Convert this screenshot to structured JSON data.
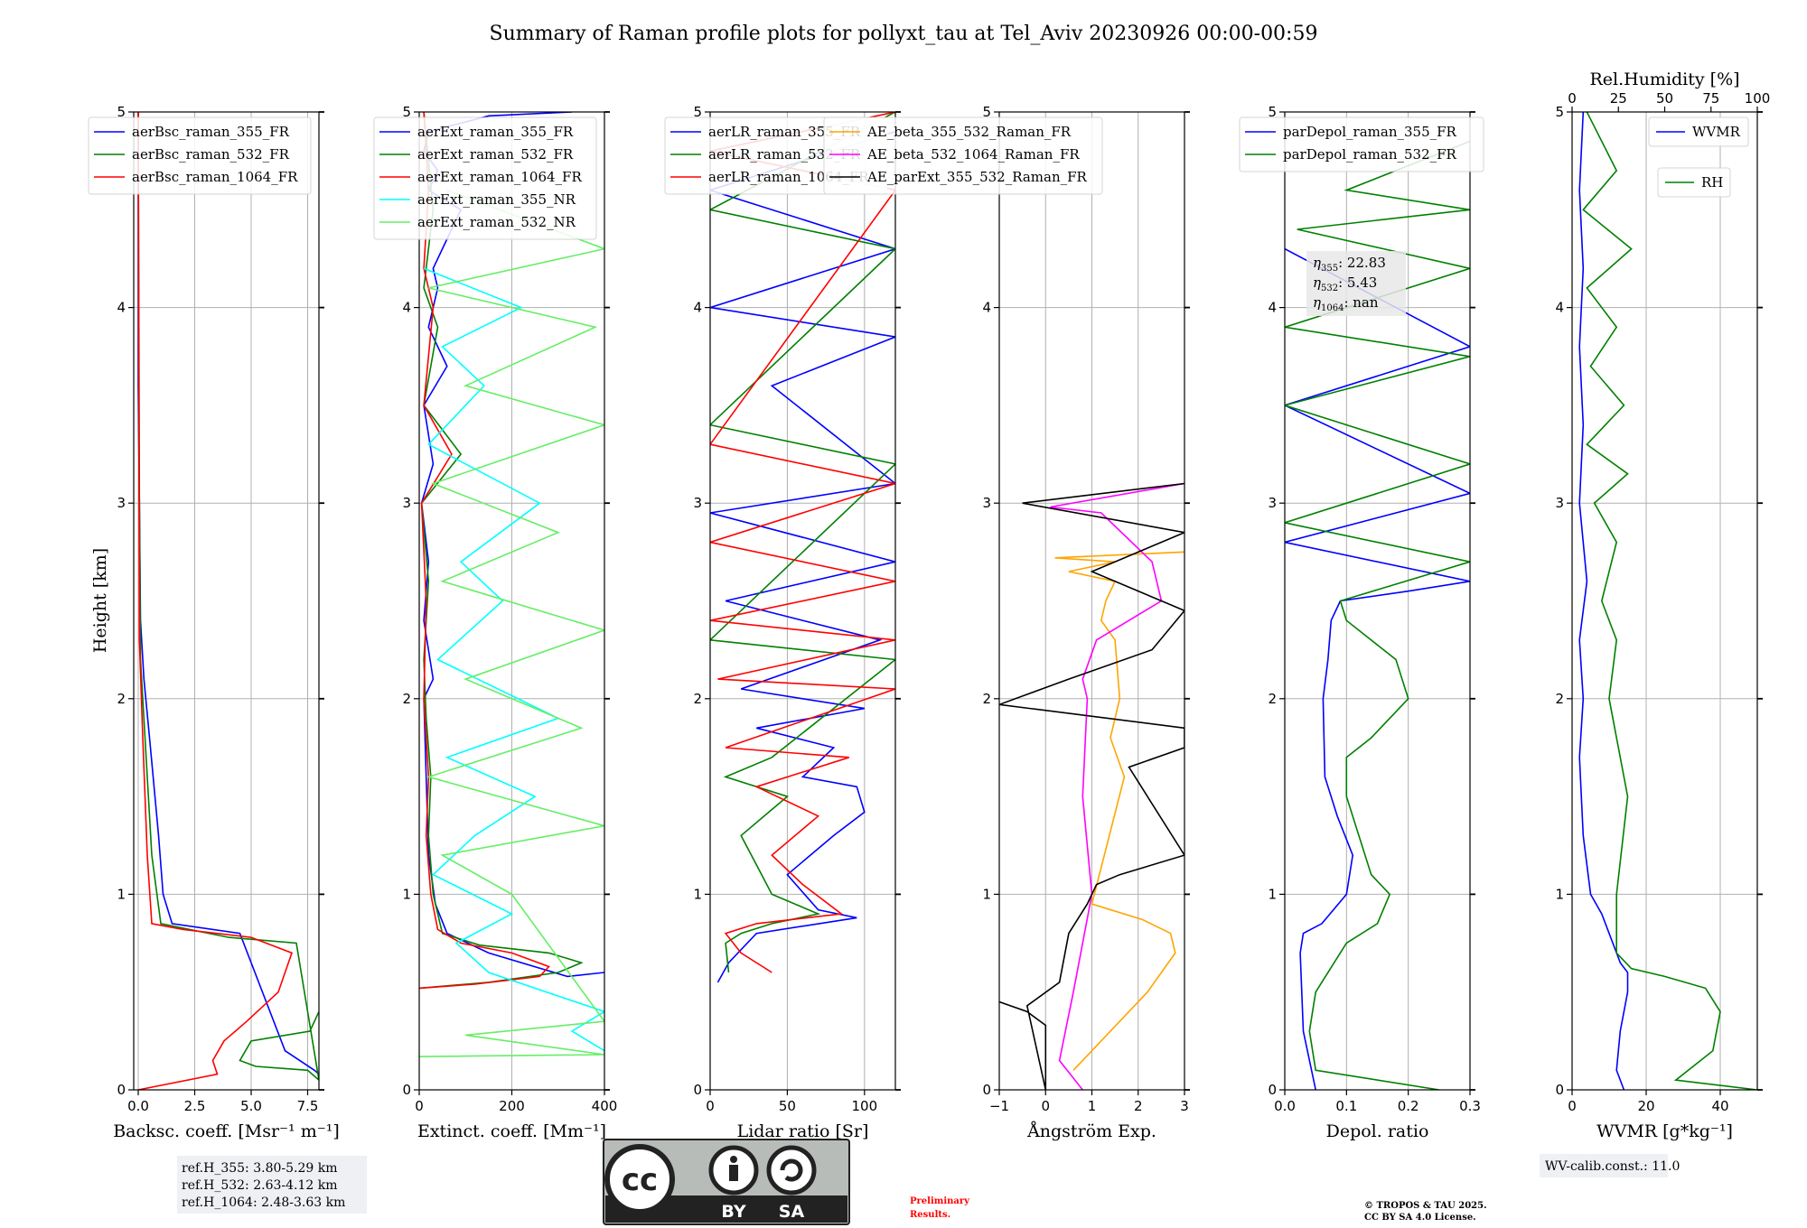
{
  "title": "Summary of Raman profile plots for pollyxt_tau at Tel_Aviv 20230926 00:00-00:59",
  "ylabel": "Height [km]",
  "chart_data": [
    {
      "type": "line",
      "id": "bsc",
      "xlabel": "Backsc. coeff. [Msr⁻¹ m⁻¹]",
      "xlim": [
        -0.2,
        8.0
      ],
      "xticks": [
        0,
        2.5,
        5,
        7.5
      ],
      "xticklabels": [
        "0.0",
        "2.5",
        "5.0",
        "7.5"
      ],
      "ylim": [
        0,
        5
      ],
      "grid": true,
      "legend": "top-left",
      "series": [
        {
          "name": "aerBsc_raman_355_FR",
          "color": "#0000ff",
          "x": [
            8.0,
            7.8,
            6.5,
            4.5,
            1.5,
            1.1,
            0.9,
            0.5,
            0.25,
            0.1,
            0.05,
            0.0,
            0.0,
            0.0
          ],
          "y": [
            0.08,
            0.1,
            0.2,
            0.8,
            0.85,
            1.0,
            1.3,
            1.8,
            2.1,
            2.4,
            3.0,
            3.6,
            4.4,
            5.0
          ]
        },
        {
          "name": "aerBsc_raman_532_FR",
          "color": "#008000",
          "x": [
            8.0,
            7.6,
            5.0,
            4.5,
            5.2,
            7.5,
            8.0,
            7.0,
            4.0,
            1.0,
            0.6,
            0.3,
            0.1,
            0.05,
            0.0
          ],
          "y": [
            0.4,
            0.3,
            0.25,
            0.15,
            0.12,
            0.1,
            0.05,
            0.75,
            0.78,
            0.85,
            1.2,
            1.8,
            2.2,
            3.0,
            5.0
          ]
        },
        {
          "name": "aerBsc_raman_1064_FR",
          "color": "#ff0000",
          "x": [
            0.0,
            3.5,
            3.3,
            3.8,
            4.8,
            6.2,
            6.8,
            5.0,
            2.0,
            0.6,
            0.4,
            0.2,
            0.05,
            0.0
          ],
          "y": [
            0.0,
            0.08,
            0.15,
            0.25,
            0.35,
            0.5,
            0.7,
            0.78,
            0.82,
            0.85,
            1.2,
            1.8,
            2.3,
            5.0
          ]
        }
      ]
    },
    {
      "type": "line",
      "id": "ext",
      "xlabel": "Extinct. coeff. [Mm⁻¹]",
      "xlim": [
        0,
        400
      ],
      "xticks": [
        0,
        200,
        400
      ],
      "xticklabels": [
        "0",
        "200",
        "400"
      ],
      "ylim": [
        0,
        5
      ],
      "grid": true,
      "legend": "top-left",
      "series": [
        {
          "name": "aerExt_raman_355_FR",
          "color": "#0000ff",
          "x": [
            400,
            320,
            150,
            60,
            35,
            20,
            15,
            10,
            30,
            10,
            20,
            5,
            30,
            10,
            60,
            20,
            40,
            30,
            90,
            20,
            40,
            10,
            20,
            150,
            330
          ],
          "y": [
            0.6,
            0.58,
            0.7,
            0.8,
            0.95,
            1.2,
            1.6,
            2.0,
            2.1,
            2.4,
            2.7,
            3.0,
            3.2,
            3.5,
            3.7,
            3.9,
            4.1,
            4.2,
            4.5,
            4.6,
            4.7,
            4.8,
            4.9,
            4.98,
            5.0
          ]
        },
        {
          "name": "aerExt_raman_532_FR",
          "color": "#008000",
          "x": [
            0,
            150,
            300,
            350,
            280,
            130,
            50,
            30,
            20,
            25,
            15,
            10,
            20,
            5,
            90,
            10,
            40,
            10,
            30,
            10
          ],
          "y": [
            0.52,
            0.55,
            0.6,
            0.65,
            0.7,
            0.74,
            0.8,
            1.0,
            1.3,
            1.6,
            1.9,
            2.2,
            2.6,
            3.0,
            3.25,
            3.5,
            3.9,
            4.1,
            4.5,
            5.0
          ]
        },
        {
          "name": "aerExt_raman_1064_FR",
          "color": "#ff0000",
          "x": [
            0,
            120,
            260,
            280,
            200,
            90,
            40,
            25,
            15,
            20,
            10,
            15,
            5,
            70,
            10,
            30,
            10,
            20,
            10
          ],
          "y": [
            0.52,
            0.54,
            0.58,
            0.63,
            0.7,
            0.75,
            0.82,
            1.0,
            1.3,
            1.6,
            2.0,
            2.5,
            3.0,
            3.25,
            3.5,
            4.0,
            4.2,
            4.6,
            5.0
          ]
        },
        {
          "name": "aerExt_raman_355_NR",
          "color": "#00ffff",
          "x": [
            400,
            330,
            400,
            150,
            80,
            200,
            30,
            120,
            250,
            60,
            300,
            40,
            180,
            90,
            260,
            20,
            140,
            50,
            220,
            10
          ],
          "y": [
            0.2,
            0.3,
            0.4,
            0.6,
            0.75,
            0.9,
            1.1,
            1.3,
            1.5,
            1.7,
            1.9,
            2.2,
            2.5,
            2.7,
            3.0,
            3.3,
            3.6,
            3.8,
            4.0,
            4.2
          ]
        },
        {
          "name": "aerExt_raman_532_NR",
          "color": "#66ee66",
          "x": [
            0,
            400,
            100,
            400,
            200,
            50,
            400,
            20,
            350,
            100,
            400,
            50,
            300,
            30,
            400,
            100,
            380,
            20,
            400,
            60
          ],
          "y": [
            0.17,
            0.18,
            0.28,
            0.35,
            1.0,
            1.2,
            1.35,
            1.6,
            1.85,
            2.1,
            2.35,
            2.6,
            2.85,
            3.1,
            3.4,
            3.6,
            3.9,
            4.1,
            4.3,
            4.6
          ]
        }
      ]
    },
    {
      "type": "line",
      "id": "lr",
      "xlabel": "Lidar ratio [Sr]",
      "xlim": [
        0,
        120
      ],
      "xticks": [
        0,
        50,
        100
      ],
      "xticklabels": [
        "0",
        "50",
        "100"
      ],
      "ylim": [
        0,
        5
      ],
      "grid": true,
      "legend": "top-left",
      "series": [
        {
          "name": "aerLR_raman_355_FR",
          "color": "#0000ff",
          "x": [
            5,
            12,
            30,
            95,
            70,
            50,
            80,
            100,
            95,
            60,
            80,
            30,
            100,
            20,
            110,
            10,
            120,
            0,
            120,
            40,
            120,
            0,
            120,
            0,
            120
          ],
          "y": [
            0.55,
            0.65,
            0.8,
            0.88,
            0.92,
            1.1,
            1.3,
            1.42,
            1.55,
            1.6,
            1.75,
            1.85,
            1.95,
            2.05,
            2.3,
            2.5,
            2.7,
            2.95,
            3.1,
            3.6,
            3.85,
            4.0,
            4.3,
            4.6,
            4.9
          ]
        },
        {
          "name": "aerLR_raman_532_FR",
          "color": "#008000",
          "x": [
            12,
            10,
            20,
            40,
            70,
            40,
            30,
            20,
            50,
            10,
            40,
            120,
            0,
            120,
            0,
            120,
            0,
            120
          ],
          "y": [
            0.6,
            0.75,
            0.8,
            0.85,
            0.9,
            1.0,
            1.15,
            1.3,
            1.5,
            1.6,
            1.7,
            2.2,
            2.3,
            3.2,
            3.4,
            4.3,
            4.5,
            5.0
          ]
        },
        {
          "name": "aerLR_raman_1064_FR",
          "color": "#ff0000",
          "x": [
            40,
            20,
            10,
            30,
            85,
            60,
            40,
            70,
            30,
            90,
            10,
            120,
            5,
            120,
            0,
            120,
            0,
            120,
            0,
            120,
            0,
            120
          ],
          "y": [
            0.6,
            0.7,
            0.8,
            0.85,
            0.9,
            1.05,
            1.2,
            1.4,
            1.55,
            1.7,
            1.75,
            2.05,
            2.1,
            2.3,
            2.4,
            2.6,
            2.8,
            3.1,
            3.3,
            4.6,
            4.8,
            5.0
          ]
        }
      ]
    },
    {
      "type": "line",
      "id": "ae",
      "xlabel": "Ångström Exp.",
      "xlim": [
        -1,
        3
      ],
      "xticks": [
        -1,
        0,
        1,
        2,
        3
      ],
      "xticklabels": [
        "−1",
        "0",
        "1",
        "2",
        "3"
      ],
      "ylim": [
        0,
        5
      ],
      "grid": true,
      "legend": "top-right",
      "series": [
        {
          "name": "AE_beta_355_532_Raman_FR",
          "color": "#ffa500",
          "x": [
            0.6,
            1.0,
            2.2,
            2.8,
            2.7,
            2.1,
            1.0,
            1.7,
            1.4,
            1.6,
            1.5,
            1.2,
            1.3,
            1.5,
            0.5,
            1.5,
            0.2,
            3.0
          ],
          "y": [
            0.1,
            0.2,
            0.5,
            0.7,
            0.8,
            0.87,
            0.95,
            1.6,
            1.8,
            2.0,
            2.3,
            2.4,
            2.5,
            2.6,
            2.65,
            2.7,
            2.72,
            2.75
          ]
        },
        {
          "name": "AE_beta_532_1064_Raman_FR",
          "color": "#ff00ff",
          "x": [
            0.8,
            0.3,
            0.6,
            1.0,
            0.8,
            0.9,
            0.8,
            1.1,
            2.5,
            2.3,
            1.2,
            0.1,
            3.0
          ],
          "y": [
            0.0,
            0.15,
            0.5,
            1.0,
            1.5,
            2.0,
            2.1,
            2.3,
            2.5,
            2.7,
            2.95,
            2.98,
            3.1
          ]
        },
        {
          "name": "AE_parExt_355_532_Raman_FR",
          "color": "#000000",
          "x": [
            -1,
            -0.4,
            0.0,
            0.0,
            -0.4,
            0.3,
            0.5,
            0.9,
            1.1,
            1.6,
            3.0,
            1.8,
            3.0,
            3.0,
            -1.0,
            0.5,
            2.3,
            3.0,
            1.0,
            3.0,
            -0.5,
            3.0
          ],
          "y": [
            0.45,
            0.4,
            0.33,
            0.0,
            0.43,
            0.55,
            0.8,
            0.95,
            1.05,
            1.1,
            1.2,
            1.65,
            1.75,
            1.85,
            1.97,
            2.1,
            2.25,
            2.45,
            2.65,
            2.85,
            3.0,
            3.1
          ]
        }
      ]
    },
    {
      "type": "line",
      "id": "depol",
      "xlabel": "Depol. ratio",
      "xlim": [
        0,
        0.3
      ],
      "xticks": [
        0,
        0.1,
        0.2,
        0.3
      ],
      "xticklabels": [
        "0.0",
        "0.1",
        "0.2",
        "0.3"
      ],
      "ylim": [
        0,
        5
      ],
      "grid": true,
      "legend": "top-left",
      "series": [
        {
          "name": "parDepol_raman_355_FR",
          "color": "#0000ff",
          "x": [
            0.05,
            0.03,
            0.025,
            0.03,
            0.06,
            0.1,
            0.11,
            0.085,
            0.065,
            0.062,
            0.07,
            0.075,
            0.09,
            0.2,
            0.3,
            0.0,
            0.3,
            0.0,
            0.3,
            0.0
          ],
          "y": [
            0.0,
            0.3,
            0.7,
            0.8,
            0.85,
            1.0,
            1.2,
            1.4,
            1.6,
            2.0,
            2.2,
            2.4,
            2.5,
            2.55,
            2.6,
            2.8,
            3.05,
            3.5,
            3.8,
            4.3
          ]
        },
        {
          "name": "parDepol_raman_532_FR",
          "color": "#008000",
          "x": [
            0.25,
            0.05,
            0.04,
            0.05,
            0.1,
            0.15,
            0.17,
            0.14,
            0.1,
            0.1,
            0.14,
            0.2,
            0.18,
            0.1,
            0.09,
            0.3,
            0.0,
            0.3,
            0.0,
            0.3,
            0.0,
            0.3,
            0.02,
            0.3,
            0.1,
            0.3
          ],
          "y": [
            0.0,
            0.1,
            0.3,
            0.5,
            0.75,
            0.85,
            1.0,
            1.1,
            1.5,
            1.7,
            1.8,
            2.0,
            2.2,
            2.4,
            2.5,
            2.7,
            2.9,
            3.2,
            3.5,
            3.75,
            3.9,
            4.2,
            4.4,
            4.5,
            4.6,
            4.85
          ]
        }
      ]
    },
    {
      "type": "line",
      "id": "wv",
      "xlabel": "WVMR [g*kg⁻¹]",
      "xlim": [
        0,
        50
      ],
      "xticks": [
        0,
        20,
        40
      ],
      "xticklabels": [
        "0",
        "20",
        "40"
      ],
      "top_axis_label": "Rel.Humidity [%]",
      "top_xlim": [
        0,
        100
      ],
      "top_xticks": [
        0,
        25,
        50,
        75,
        100
      ],
      "top_xticklabels": [
        "0",
        "25",
        "50",
        "75",
        "100"
      ],
      "ylim": [
        0,
        5
      ],
      "grid": true,
      "legend": "top-right",
      "series": [
        {
          "name": "WVMR",
          "color": "#0000ff",
          "x": [
            14,
            12,
            13,
            15,
            15,
            13,
            12,
            10,
            8,
            5,
            3,
            2,
            3,
            2,
            4,
            2,
            3,
            2,
            3,
            2,
            3
          ],
          "y": [
            0.0,
            0.1,
            0.3,
            0.5,
            0.6,
            0.65,
            0.7,
            0.8,
            0.9,
            1.0,
            1.3,
            1.7,
            2.0,
            2.3,
            2.6,
            3.0,
            3.4,
            3.8,
            4.2,
            4.6,
            5.0
          ]
        },
        {
          "name": "RH",
          "color": "#008000",
          "x": [
            50,
            28,
            38,
            40,
            36,
            25,
            16,
            12,
            12,
            15,
            10,
            12,
            8,
            12,
            6,
            15,
            4,
            14,
            5,
            12,
            4,
            16,
            3,
            12,
            4
          ],
          "y": [
            0.0,
            0.05,
            0.2,
            0.4,
            0.52,
            0.58,
            0.62,
            0.7,
            1.0,
            1.5,
            2.0,
            2.3,
            2.5,
            2.8,
            3.0,
            3.15,
            3.3,
            3.5,
            3.7,
            3.9,
            4.1,
            4.3,
            4.5,
            4.7,
            5.0
          ]
        }
      ]
    }
  ],
  "annotations": {
    "eta355_label": "η",
    "eta355_sub": "355",
    "eta355_val": ": 22.83",
    "eta532_label": "η",
    "eta532_sub": "532",
    "eta532_val": ": 5.43",
    "eta1064_label": "η",
    "eta1064_sub": "1064",
    "eta1064_val": ": nan"
  },
  "ref_heights": [
    "ref.H_355: 3.80-5.29 km",
    "ref.H_532: 2.63-4.12 km",
    "ref.H_1064: 2.48-3.63 km"
  ],
  "wv_calib": "WV-calib.const.: 11.0",
  "license_badge": {
    "cc": "cc",
    "by": "BY",
    "sa": "SA"
  },
  "preliminary": [
    "Preliminary",
    "Results."
  ],
  "copyright": [
    "© TROPOS & TAU 2025.",
    "CC BY SA 4.0 License."
  ],
  "colors": {
    "blue": "#0000ff",
    "green": "#008000",
    "red": "#ff0000",
    "cyan": "#00ffff",
    "lightgreen": "#66ee66",
    "orange": "#ffa500",
    "magenta": "#ff00ff",
    "black": "#000000",
    "preliminary": "#ff0000"
  }
}
